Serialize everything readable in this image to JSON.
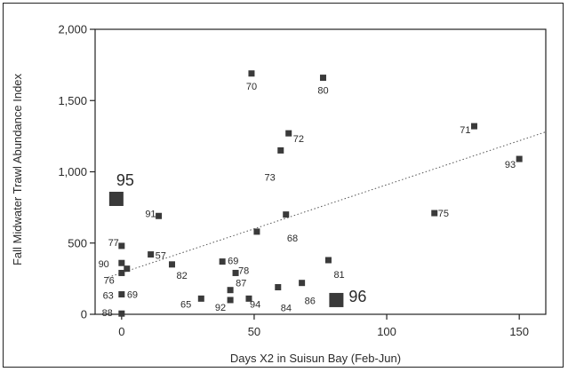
{
  "chart_data": {
    "type": "scatter",
    "title": "",
    "xlabel": "Days X2 in Suisun Bay (Feb-Jun)",
    "ylabel": "Fall Midwater Trawl Abundance Index",
    "xlim": [
      -10,
      160
    ],
    "ylim": [
      0,
      2000
    ],
    "x_ticks": [
      0,
      50,
      100,
      150
    ],
    "y_ticks": [
      0,
      500,
      1000,
      1500,
      2000
    ],
    "y_tick_labels": [
      "0",
      "500",
      "1,000",
      "1,500",
      "2,000"
    ],
    "grid": false,
    "legend": "none",
    "trendline": {
      "type": "linear",
      "style": "dotted",
      "x": [
        -5,
        160
      ],
      "y": [
        260,
        1280
      ]
    },
    "points": [
      {
        "label": "70",
        "x": 49,
        "y": 1690,
        "size": "small"
      },
      {
        "label": "80",
        "x": 76,
        "y": 1660,
        "size": "small"
      },
      {
        "label": "72",
        "x": 63,
        "y": 1270,
        "size": "small"
      },
      {
        "label": "73",
        "x": 60,
        "y": 1150,
        "size": "small"
      },
      {
        "label": "71",
        "x": 133,
        "y": 1320,
        "size": "small"
      },
      {
        "label": "93",
        "x": 150,
        "y": 1090,
        "size": "small"
      },
      {
        "label": "95",
        "x": -2,
        "y": 810,
        "size": "large"
      },
      {
        "label": "91",
        "x": 14,
        "y": 690,
        "size": "small"
      },
      {
        "label": "75",
        "x": 118,
        "y": 710,
        "size": "small"
      },
      {
        "label": "",
        "x": 62,
        "y": 700,
        "size": "small"
      },
      {
        "label": "68",
        "x": 51,
        "y": 580,
        "size": "small"
      },
      {
        "label": "77",
        "x": 0,
        "y": 480,
        "size": "small"
      },
      {
        "label": "57",
        "x": 11,
        "y": 420,
        "size": "small"
      },
      {
        "label": "90",
        "x": 0,
        "y": 360,
        "size": "small"
      },
      {
        "label": "76",
        "x": 2,
        "y": 320,
        "size": "small"
      },
      {
        "label": "82",
        "x": 19,
        "y": 350,
        "size": "small"
      },
      {
        "label": "69",
        "x": 38,
        "y": 370,
        "size": "small"
      },
      {
        "label": "78",
        "x": 43,
        "y": 290,
        "size": "small"
      },
      {
        "label": "81",
        "x": 78,
        "y": 380,
        "size": "small"
      },
      {
        "label": "69",
        "x": 0,
        "y": 290,
        "size": "small"
      },
      {
        "label": "87",
        "x": 41,
        "y": 170,
        "size": "small"
      },
      {
        "label": "63",
        "x": 0,
        "y": 140,
        "size": "small"
      },
      {
        "label": "65",
        "x": 30,
        "y": 110,
        "size": "small"
      },
      {
        "label": "92",
        "x": 41,
        "y": 100,
        "size": "small"
      },
      {
        "label": "94",
        "x": 48,
        "y": 110,
        "size": "small"
      },
      {
        "label": "84",
        "x": 59,
        "y": 190,
        "size": "small"
      },
      {
        "label": "86",
        "x": 68,
        "y": 220,
        "size": "small"
      },
      {
        "label": "96",
        "x": 81,
        "y": 100,
        "size": "large"
      },
      {
        "label": "88",
        "x": 0,
        "y": 5,
        "size": "small"
      }
    ],
    "label_offsets": {
      "_comment": ""
    }
  },
  "colors": {
    "marker": "#3a3a3a",
    "axis": "#222222",
    "trend": "#555555",
    "text": "#2a2a2a"
  }
}
